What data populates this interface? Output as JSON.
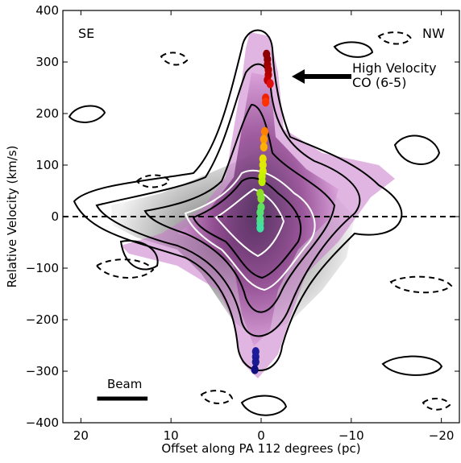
{
  "chart_data": {
    "type": "scatter",
    "xlabel": "Offset along PA 112 degrees (pc)",
    "ylabel": "Relative Velocity (km/s)",
    "xlim": [
      22,
      -22
    ],
    "ylim": [
      -400,
      400
    ],
    "x_ticks": [
      20,
      10,
      0,
      -10,
      -20
    ],
    "x_tick_labels": [
      "20",
      "10",
      "0",
      "−10",
      "−20"
    ],
    "y_ticks": [
      400,
      300,
      200,
      100,
      0,
      -100,
      -200,
      -300,
      -400
    ],
    "y_tick_labels": [
      "400",
      "300",
      "200",
      "100",
      "0",
      "−100",
      "−200",
      "−300",
      "−400"
    ],
    "annotations": {
      "se": "SE",
      "nw": "NW",
      "hv_line1": "High Velocity",
      "hv_line2": "CO (6-5)",
      "beam": "Beam"
    },
    "beam_size_pc": 5.6,
    "zero_line": 0,
    "maser_points": [
      {
        "x": -0.6,
        "y": 315,
        "color": "#8b0000"
      },
      {
        "x": -0.7,
        "y": 305,
        "color": "#8b0000"
      },
      {
        "x": -0.7,
        "y": 295,
        "color": "#9b0000"
      },
      {
        "x": -0.8,
        "y": 285,
        "color": "#a80000"
      },
      {
        "x": -0.8,
        "y": 275,
        "color": "#b00000"
      },
      {
        "x": -0.7,
        "y": 265,
        "color": "#c00000"
      },
      {
        "x": -1.0,
        "y": 258,
        "color": "#e01010"
      },
      {
        "x": -0.5,
        "y": 230,
        "color": "#ee2200"
      },
      {
        "x": -0.5,
        "y": 222,
        "color": "#ff3300"
      },
      {
        "x": -0.4,
        "y": 165,
        "color": "#ff8000"
      },
      {
        "x": -0.3,
        "y": 150,
        "color": "#ff9a00"
      },
      {
        "x": -0.3,
        "y": 135,
        "color": "#ffb000"
      },
      {
        "x": -0.2,
        "y": 112,
        "color": "#e8e000"
      },
      {
        "x": -0.2,
        "y": 100,
        "color": "#e0e800"
      },
      {
        "x": -0.2,
        "y": 88,
        "color": "#d8ee00"
      },
      {
        "x": -0.1,
        "y": 78,
        "color": "#c8f000"
      },
      {
        "x": -0.1,
        "y": 68,
        "color": "#c0f000"
      },
      {
        "x": 0.1,
        "y": 45,
        "color": "#90e020"
      },
      {
        "x": 0.0,
        "y": 35,
        "color": "#88e030"
      },
      {
        "x": 0.0,
        "y": 18,
        "color": "#60e060"
      },
      {
        "x": 0.1,
        "y": 8,
        "color": "#55e070"
      },
      {
        "x": 0.1,
        "y": -5,
        "color": "#50e080"
      },
      {
        "x": 0.1,
        "y": -13,
        "color": "#48e090"
      },
      {
        "x": 0.1,
        "y": -22,
        "color": "#40e0a0"
      },
      {
        "x": 0.6,
        "y": -262,
        "color": "#1c1c9a"
      },
      {
        "x": 0.6,
        "y": -272,
        "color": "#1c1c9a"
      },
      {
        "x": 0.6,
        "y": -282,
        "color": "#1a1a90"
      },
      {
        "x": 0.7,
        "y": -297,
        "color": "#101080"
      }
    ]
  }
}
